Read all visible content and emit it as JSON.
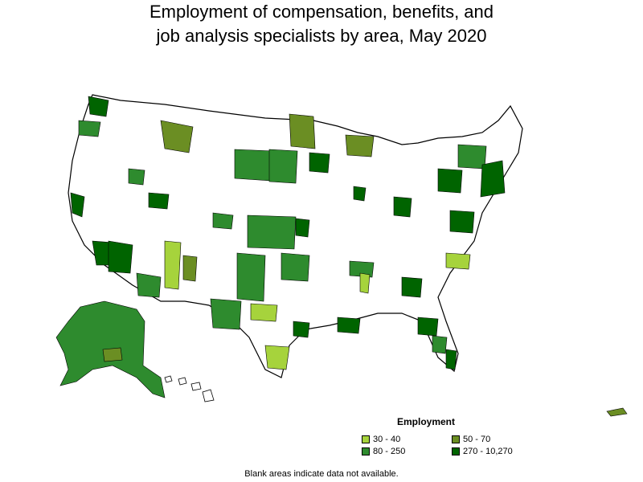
{
  "title_lines": [
    "Employment of compensation, benefits, and",
    "job analysis specialists by area, May 2020"
  ],
  "legend": {
    "title": "Employment",
    "items": [
      {
        "label": "30 - 40",
        "color": "#a6d33c"
      },
      {
        "label": "50 - 70",
        "color": "#6b8e23"
      },
      {
        "label": "80 - 250",
        "color": "#2e8b2e"
      },
      {
        "label": "270 - 10,270",
        "color": "#006400"
      }
    ]
  },
  "footnote": "Blank areas indicate data not available.",
  "colors": {
    "no_data": "#ffffff",
    "border": "#000000"
  }
}
